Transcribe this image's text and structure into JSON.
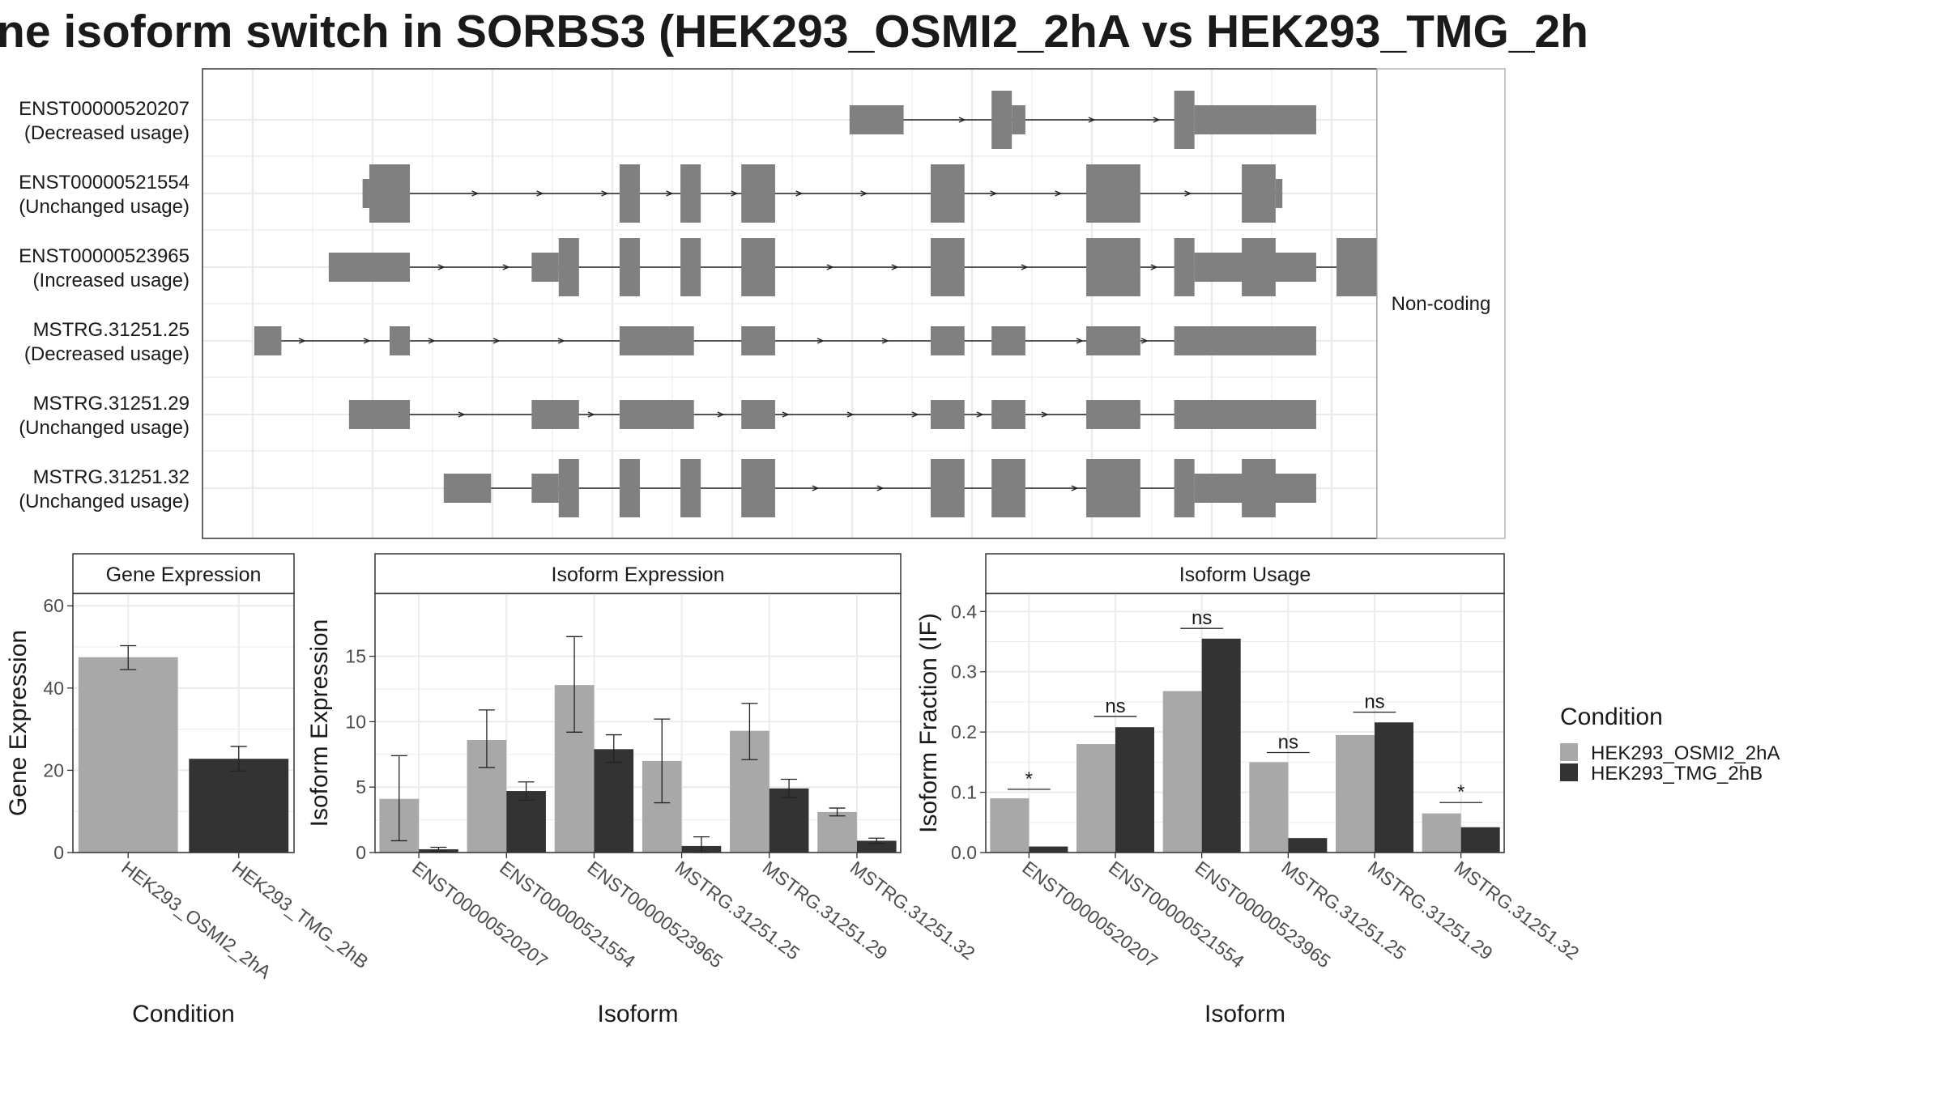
{
  "title": "ne isoform switch in SORBS3 (HEK293_OSMI2_2hA vs HEK293_TMG_2h",
  "colors": {
    "condition_a": "#a8a8a8",
    "condition_b": "#333333",
    "exon": "#808080",
    "grid": "#ebebeb",
    "panel_border": "#333333"
  },
  "structure": {
    "facet_label": "Non-coding",
    "rows": [
      {
        "id": "ENST00000520207",
        "status": "(Decreased usage)",
        "exons": [
          [
            0.88,
            0.96,
            "s"
          ],
          [
            1.09,
            1.12,
            "l"
          ],
          [
            1.12,
            1.14,
            "s"
          ],
          [
            1.36,
            1.39,
            "l"
          ],
          [
            1.39,
            1.57,
            "s"
          ]
        ]
      },
      {
        "id": "ENST00000521554",
        "status": "(Unchanged usage)",
        "exons": [
          [
            0.16,
            0.17,
            "s"
          ],
          [
            0.17,
            0.23,
            "l"
          ],
          [
            0.54,
            0.57,
            "l"
          ],
          [
            0.63,
            0.66,
            "l"
          ],
          [
            0.72,
            0.77,
            "l"
          ],
          [
            1.0,
            1.05,
            "l"
          ],
          [
            1.23,
            1.31,
            "l"
          ],
          [
            1.46,
            1.51,
            "l"
          ],
          [
            1.51,
            1.52,
            "s"
          ]
        ]
      },
      {
        "id": "ENST00000523965",
        "status": "(Increased usage)",
        "exons": [
          [
            0.11,
            0.23,
            "s"
          ],
          [
            0.41,
            0.45,
            "s"
          ],
          [
            0.45,
            0.48,
            "l"
          ],
          [
            0.54,
            0.57,
            "l"
          ],
          [
            0.63,
            0.66,
            "l"
          ],
          [
            0.72,
            0.77,
            "l"
          ],
          [
            1.0,
            1.05,
            "l"
          ],
          [
            1.23,
            1.31,
            "l"
          ],
          [
            1.46,
            1.51,
            "l"
          ],
          [
            1.6,
            1.66,
            "l"
          ],
          [
            1.36,
            1.39,
            "l"
          ],
          [
            1.39,
            1.57,
            "s"
          ]
        ]
      },
      {
        "id": "MSTRG.31251.25",
        "status": "(Decreased usage)",
        "exons": [
          [
            0.0,
            0.04,
            "s"
          ],
          [
            0.2,
            0.23,
            "s"
          ],
          [
            0.54,
            0.65,
            "s"
          ],
          [
            0.72,
            0.77,
            "s"
          ],
          [
            1.0,
            1.05,
            "s"
          ],
          [
            1.23,
            1.31,
            "s"
          ],
          [
            1.46,
            1.51,
            "s"
          ],
          [
            1.09,
            1.14,
            "s"
          ],
          [
            1.36,
            1.57,
            "s"
          ]
        ]
      },
      {
        "id": "MSTRG.31251.29",
        "status": "(Unchanged usage)",
        "exons": [
          [
            0.14,
            0.23,
            "s"
          ],
          [
            0.41,
            0.48,
            "s"
          ],
          [
            0.54,
            0.65,
            "s"
          ],
          [
            0.72,
            0.77,
            "s"
          ],
          [
            1.0,
            1.05,
            "s"
          ],
          [
            1.23,
            1.31,
            "s"
          ],
          [
            1.46,
            1.51,
            "s"
          ],
          [
            1.09,
            1.14,
            "s"
          ],
          [
            1.36,
            1.57,
            "s"
          ]
        ]
      },
      {
        "id": "MSTRG.31251.32",
        "status": "(Unchanged usage)",
        "exons": [
          [
            0.28,
            0.35,
            "s"
          ],
          [
            0.41,
            0.45,
            "s"
          ],
          [
            0.45,
            0.48,
            "l"
          ],
          [
            0.54,
            0.57,
            "l"
          ],
          [
            0.63,
            0.66,
            "l"
          ],
          [
            0.72,
            0.77,
            "l"
          ],
          [
            1.0,
            1.05,
            "l"
          ],
          [
            1.23,
            1.31,
            "l"
          ],
          [
            1.46,
            1.51,
            "l"
          ],
          [
            1.09,
            1.14,
            "l"
          ],
          [
            1.36,
            1.39,
            "l"
          ],
          [
            1.39,
            1.57,
            "s"
          ]
        ]
      }
    ]
  },
  "chart_data": [
    {
      "type": "bar",
      "strip": "Gene Expression",
      "ylabel": "Gene Expression",
      "xlabel": "Condition",
      "ylim": [
        0,
        63
      ],
      "yticks": [
        0,
        20,
        40,
        60
      ],
      "categories": [
        "HEK293_OSMI2_2hA",
        "HEK293_TMG_2hB"
      ],
      "values": [
        47.5,
        22.8
      ],
      "err_low": [
        44.5,
        19.8
      ],
      "err_high": [
        50.3,
        25.8
      ]
    },
    {
      "type": "bar",
      "strip": "Isoform Expression",
      "ylabel": "Isoform Expression",
      "xlabel": "Isoform",
      "ylim": [
        0,
        19.8
      ],
      "yticks": [
        0,
        5,
        10,
        15
      ],
      "categories": [
        "ENST00000520207",
        "ENST00000521554",
        "ENST00000523965",
        "MSTRG.31251.25",
        "MSTRG.31251.29",
        "MSTRG.31251.32"
      ],
      "series": [
        {
          "name": "HEK293_OSMI2_2hA",
          "values": [
            4.1,
            8.6,
            12.8,
            7.0,
            9.3,
            3.1
          ],
          "err_low": [
            0.9,
            6.5,
            9.2,
            3.8,
            7.1,
            2.8
          ],
          "err_high": [
            7.4,
            10.9,
            16.5,
            10.2,
            11.4,
            3.4
          ]
        },
        {
          "name": "HEK293_TMG_2hB",
          "values": [
            0.25,
            4.7,
            7.9,
            0.5,
            4.9,
            0.9
          ],
          "err_low": [
            0.1,
            4.0,
            6.9,
            0.0,
            4.2,
            0.7
          ],
          "err_high": [
            0.4,
            5.4,
            9.0,
            1.2,
            5.6,
            1.1
          ]
        }
      ]
    },
    {
      "type": "bar",
      "strip": "Isoform Usage",
      "ylabel": "Isoform Fraction (IF)",
      "xlabel": "Isoform",
      "ylim": [
        0,
        0.43
      ],
      "yticks": [
        0.0,
        0.1,
        0.2,
        0.3,
        0.4
      ],
      "categories": [
        "ENST00000520207",
        "ENST00000521554",
        "ENST00000523965",
        "MSTRG.31251.25",
        "MSTRG.31251.29",
        "MSTRG.31251.32"
      ],
      "series": [
        {
          "name": "HEK293_OSMI2_2hA",
          "values": [
            0.09,
            0.18,
            0.268,
            0.15,
            0.195,
            0.065
          ]
        },
        {
          "name": "HEK293_TMG_2hB",
          "values": [
            0.01,
            0.208,
            0.355,
            0.024,
            0.216,
            0.042
          ]
        }
      ],
      "significance": [
        {
          "label": "*",
          "y": 0.105
        },
        {
          "label": "ns",
          "y": 0.226
        },
        {
          "label": "ns",
          "y": 0.372
        },
        {
          "label": "ns",
          "y": 0.166
        },
        {
          "label": "ns",
          "y": 0.233
        },
        {
          "label": "*",
          "y": 0.083
        }
      ]
    }
  ],
  "legend": {
    "title": "Condition",
    "items": [
      "HEK293_OSMI2_2hA",
      "HEK293_TMG_2hB"
    ]
  }
}
